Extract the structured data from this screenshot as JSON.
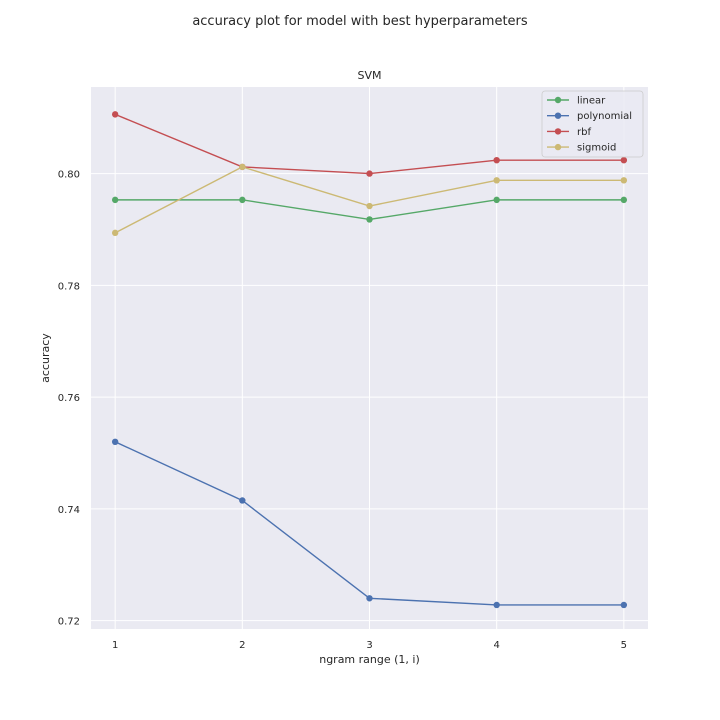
{
  "figure": {
    "suptitle": "accuracy plot for model with best hyperparameters"
  },
  "chart_data": {
    "type": "line",
    "title": "SVM",
    "xlabel": "ngram range (1, i)",
    "ylabel": "accuracy",
    "x": [
      1,
      2,
      3,
      4,
      5
    ],
    "xlim": [
      0.81,
      5.19
    ],
    "ylim": [
      0.7185,
      0.8155
    ],
    "yticks": [
      0.72,
      0.74,
      0.76,
      0.78,
      0.8
    ],
    "ytick_labels": [
      "0.72",
      "0.74",
      "0.76",
      "0.78",
      "0.80"
    ],
    "xtick_labels": [
      "1",
      "2",
      "3",
      "4",
      "5"
    ],
    "grid": true,
    "legend_position": "top-right",
    "series": [
      {
        "name": "linear",
        "color": "#55a868",
        "values": [
          0.7953,
          0.7953,
          0.7918,
          0.7953,
          0.7953
        ]
      },
      {
        "name": "polynomial",
        "color": "#4c72b0",
        "values": [
          0.752,
          0.7415,
          0.724,
          0.7228,
          0.7228
        ]
      },
      {
        "name": "rbf",
        "color": "#c44e52",
        "values": [
          0.8106,
          0.8012,
          0.8,
          0.8024,
          0.8024
        ]
      },
      {
        "name": "sigmoid",
        "color": "#ccb974",
        "values": [
          0.7894,
          0.8012,
          0.7942,
          0.7988,
          0.7988
        ]
      }
    ]
  }
}
